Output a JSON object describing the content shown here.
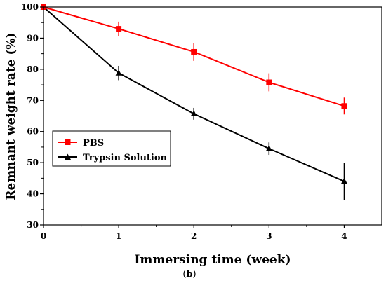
{
  "chart_data": {
    "type": "line",
    "xlabel": "Immersing time (week)",
    "ylabel": "Remnant weight rate (%)",
    "panel_label": {
      "open": "(",
      "letter": "b",
      "close": ")"
    },
    "x": [
      0,
      1,
      2,
      3,
      4
    ],
    "xlim": [
      0,
      4.5
    ],
    "ylim": [
      30,
      100
    ],
    "xticks": [
      0,
      1,
      2,
      3,
      4
    ],
    "yticks": [
      30,
      40,
      50,
      60,
      70,
      80,
      90,
      100
    ],
    "grid": false,
    "legend_position": "center-left",
    "series": [
      {
        "name": "PBS",
        "color": "#ff0000",
        "marker": "square",
        "values": [
          100,
          93,
          85.6,
          75.8,
          68.2
        ],
        "errors": [
          0,
          2.3,
          2.9,
          2.9,
          2.7
        ]
      },
      {
        "name": "Trypsin Solution",
        "color": "#000000",
        "marker": "triangle",
        "values": [
          100,
          78.8,
          65.7,
          54.5,
          44
        ],
        "errors": [
          0,
          2.3,
          1.9,
          2.0,
          6.0
        ]
      }
    ]
  }
}
